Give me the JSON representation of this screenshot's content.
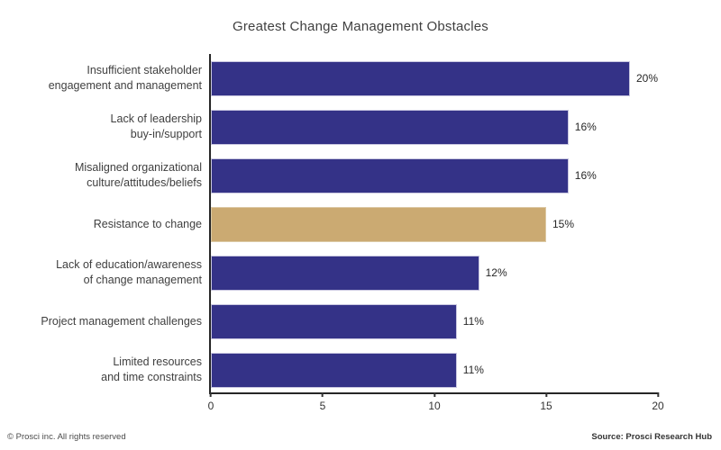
{
  "title": "Greatest Change Management Obstacles",
  "footer": {
    "left": "© Prosci inc. All rights reserved",
    "right": "Source: Prosci Research Hub"
  },
  "colors": {
    "bar": "#343287",
    "highlight": "#cbaa72",
    "axis": "#262626"
  },
  "chart_data": {
    "type": "bar",
    "orientation": "horizontal",
    "title": "Greatest Change Management Obstacles",
    "categories": [
      [
        "Insufficient stakeholder",
        "engagement and management"
      ],
      [
        "Lack of leadership",
        "buy-in/support"
      ],
      [
        "Misaligned organizational",
        "culture/attitudes/beliefs"
      ],
      [
        "Resistance to change"
      ],
      [
        "Lack of education/awareness",
        "of change management"
      ],
      [
        "Project management challenges"
      ],
      [
        "Limited resources",
        "and time constraints"
      ]
    ],
    "values": [
      20,
      16,
      16,
      15,
      12,
      11,
      11
    ],
    "value_labels": [
      "20%",
      "16%",
      "16%",
      "15%",
      "12%",
      "11%",
      "11%"
    ],
    "highlight_index": 3,
    "highlight_category": "Resistance to change",
    "xlabel": "",
    "ylabel": "",
    "xlim": [
      0,
      20
    ],
    "xticks": [
      0,
      5,
      10,
      15,
      20
    ],
    "grid": false,
    "legend": false
  }
}
